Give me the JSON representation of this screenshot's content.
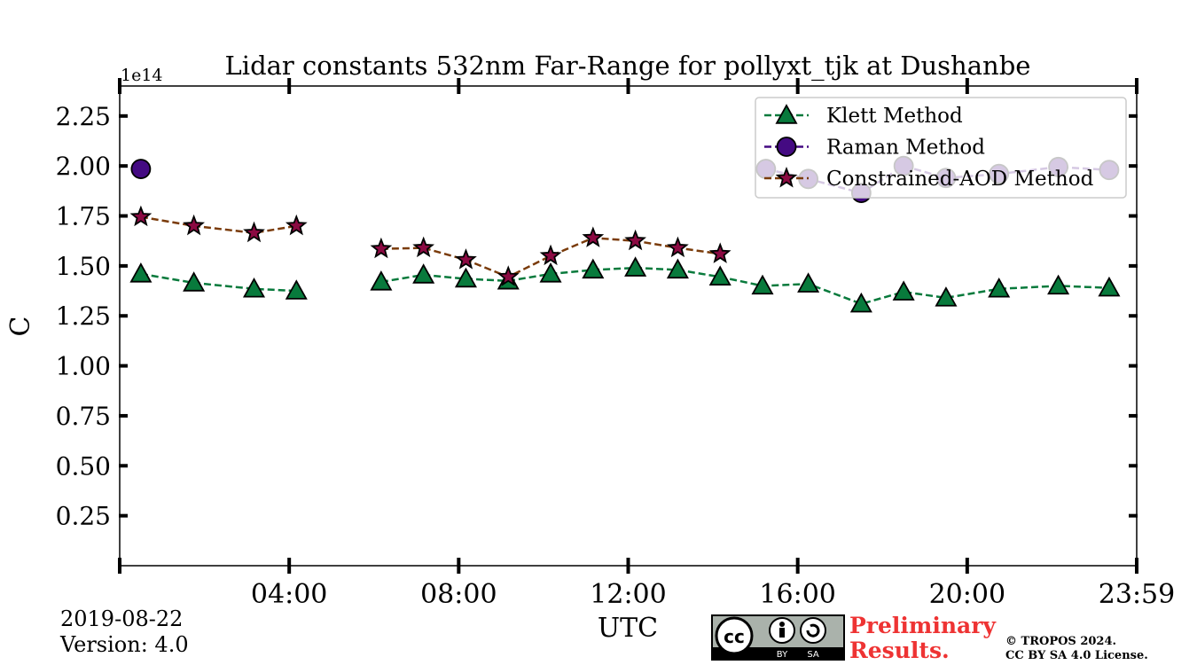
{
  "chart_data": {
    "type": "line",
    "title": "Lidar constants 532nm Far-Range for pollyxt_tjk at Dushanbe",
    "xlabel": "UTC",
    "ylabel": "C",
    "y_multiplier_label": "1e14",
    "x_range_hours": [
      0,
      24
    ],
    "x_tick_hours": [
      0,
      4,
      8,
      12,
      16,
      20,
      24
    ],
    "x_tick_labels": [
      "",
      "04:00",
      "08:00",
      "12:00",
      "16:00",
      "20:00",
      "23:59"
    ],
    "ylim": [
      0,
      2.4
    ],
    "y_ticks": [
      0.25,
      0.5,
      0.75,
      1.0,
      1.25,
      1.5,
      1.75,
      2.0,
      2.25
    ],
    "y_tick_labels": [
      "0.25",
      "0.50",
      "0.75",
      "1.00",
      "1.25",
      "1.50",
      "1.75",
      "2.00",
      "2.25"
    ],
    "grid": false,
    "legend_position": "top-right",
    "series": [
      {
        "name": "Klett Method",
        "color": "#087a3c",
        "marker": "triangle",
        "segments": [
          [
            [
              0.5,
              1.46
            ],
            [
              1.75,
              1.415
            ],
            [
              3.17,
              1.385
            ],
            [
              4.17,
              1.375
            ]
          ],
          [
            [
              6.17,
              1.42
            ],
            [
              7.17,
              1.455
            ],
            [
              8.17,
              1.435
            ],
            [
              9.17,
              1.425
            ],
            [
              10.17,
              1.46
            ],
            [
              11.17,
              1.48
            ],
            [
              12.17,
              1.49
            ],
            [
              13.17,
              1.48
            ],
            [
              14.17,
              1.445
            ],
            [
              15.17,
              1.4
            ],
            [
              16.25,
              1.41
            ],
            [
              17.5,
              1.31
            ],
            [
              18.5,
              1.37
            ],
            [
              19.5,
              1.34
            ],
            [
              20.75,
              1.385
            ],
            [
              22.15,
              1.4
            ],
            [
              23.35,
              1.39
            ]
          ]
        ]
      },
      {
        "name": "Raman Method",
        "color": "#440a82",
        "marker": "circle",
        "segments": [
          [
            [
              0.5,
              1.985
            ]
          ],
          [
            [
              15.25,
              1.985
            ],
            [
              16.25,
              1.935
            ],
            [
              17.5,
              1.865
            ],
            [
              18.5,
              2.0
            ],
            [
              19.5,
              1.94
            ],
            [
              20.75,
              1.96
            ],
            [
              22.15,
              1.995
            ],
            [
              23.35,
              1.98
            ]
          ]
        ]
      },
      {
        "name": "Constrained-AOD Method",
        "color": "#7a3b0a",
        "marker": "star",
        "marker_fill": "#8b0a42",
        "segments": [
          [
            [
              0.5,
              1.745
            ],
            [
              1.75,
              1.7
            ],
            [
              3.17,
              1.665
            ],
            [
              4.17,
              1.7
            ]
          ],
          [
            [
              6.17,
              1.585
            ],
            [
              7.17,
              1.59
            ],
            [
              8.17,
              1.53
            ],
            [
              9.17,
              1.445
            ],
            [
              10.17,
              1.55
            ],
            [
              11.17,
              1.64
            ],
            [
              12.17,
              1.625
            ],
            [
              13.17,
              1.59
            ],
            [
              14.17,
              1.56
            ]
          ]
        ]
      }
    ]
  },
  "footer": {
    "date": "2019-08-22",
    "version": "Version: 4.0",
    "preliminary_line1": "Preliminary",
    "preliminary_line2": "Results.",
    "copyright_line1": "© TROPOS 2024.",
    "copyright_line2": "CC BY SA 4.0 License.",
    "license_badge_text_by": "BY",
    "license_badge_text_sa": "SA"
  }
}
